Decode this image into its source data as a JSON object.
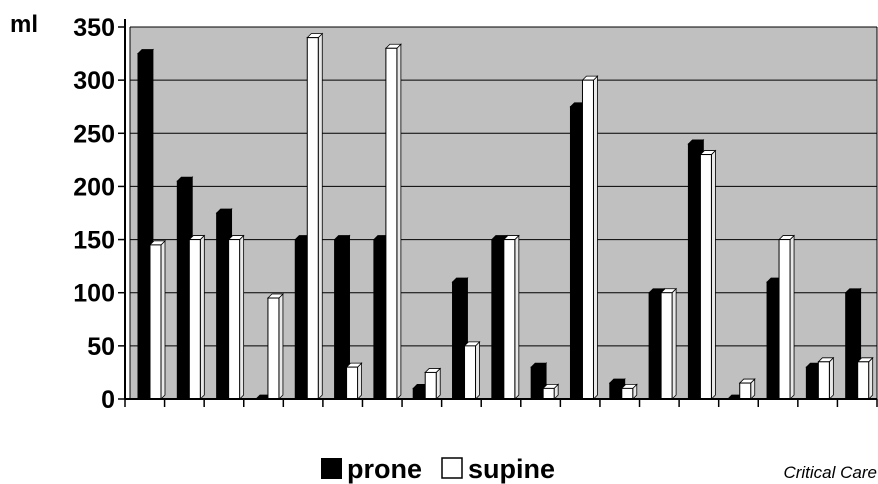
{
  "chart_data": {
    "type": "bar",
    "ylabel": "ml",
    "ylim": [
      0,
      350
    ],
    "yticks": [
      0,
      50,
      100,
      150,
      200,
      250,
      300,
      350
    ],
    "grid": true,
    "legend_position": "bottom",
    "categories_count": 19,
    "series": [
      {
        "name": "prone",
        "color": "#000000",
        "values": [
          325,
          205,
          175,
          0,
          150,
          150,
          150,
          10,
          110,
          150,
          30,
          275,
          15,
          100,
          240,
          0,
          110,
          30,
          100
        ]
      },
      {
        "name": "supine",
        "color": "#ffffff",
        "values": [
          145,
          150,
          150,
          95,
          340,
          30,
          330,
          25,
          50,
          150,
          10,
          300,
          10,
          100,
          230,
          15,
          150,
          35,
          35
        ]
      }
    ]
  },
  "credit": "Critical Care"
}
